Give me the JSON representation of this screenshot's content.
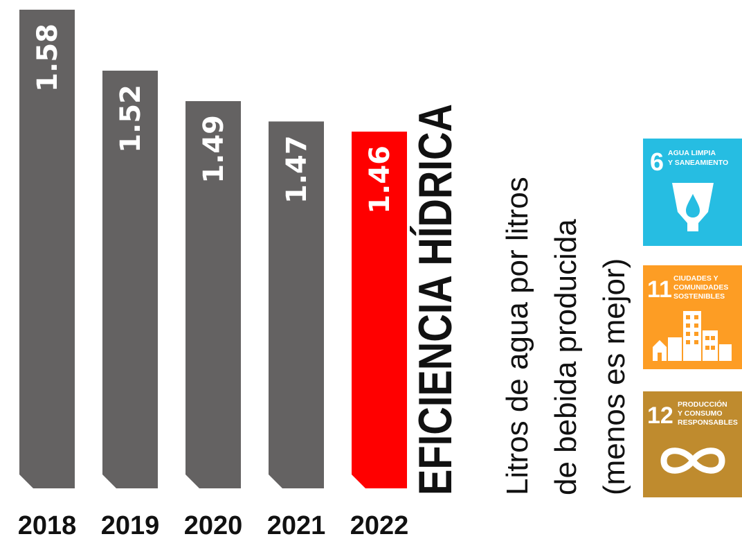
{
  "chart_data": {
    "type": "bar",
    "title": "EFICIENCIA HÍDRICA",
    "subtitle_lines": [
      "Litros de agua por litros",
      "de bebida producida",
      "(menos es mejor)"
    ],
    "categories": [
      "2018",
      "2019",
      "2020",
      "2021",
      "2022"
    ],
    "values": [
      1.58,
      1.52,
      1.49,
      1.47,
      1.46
    ],
    "value_labels": [
      "1.58",
      "1.52",
      "1.49",
      "1.47",
      "1.46"
    ],
    "highlight": "2022",
    "grid": false,
    "legend": "none"
  },
  "colors": {
    "bar": "#646262",
    "highlight": "#ff0000",
    "text": "#111111"
  },
  "sdg_badges": [
    {
      "number": "6",
      "lines": [
        "AGUA LIMPIA",
        "Y SANEAMIENTO"
      ],
      "color": "#26bde2",
      "icon": "water-drop-icon"
    },
    {
      "number": "11",
      "lines": [
        "CIUDADES Y",
        "COMUNIDADES",
        "SOSTENIBLES"
      ],
      "color": "#fd9d24",
      "icon": "city-buildings-icon"
    },
    {
      "number": "12",
      "lines": [
        "PRODUCCIÓN",
        "Y CONSUMO",
        "RESPONSABLES"
      ],
      "color": "#bf8b2e",
      "icon": "infinity-loop-icon"
    }
  ]
}
